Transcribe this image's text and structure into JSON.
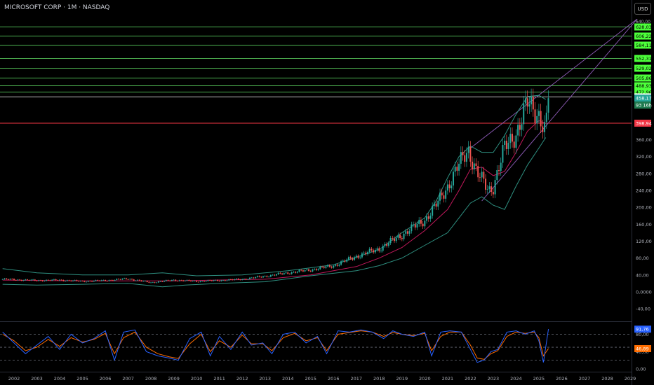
{
  "header": {
    "title": "MICROSOFT CORP · 1M · NASDAQ",
    "currency": "USD"
  },
  "colors": {
    "up": "#26a69a",
    "down": "#ef5350",
    "level_line": "#4caf50",
    "level_tag": "#4cff3a",
    "support": "#f23645",
    "bb": "#2e8f80",
    "ma": "#c2185b",
    "channel": "#8e5bb8",
    "k": "#2962ff",
    "d": "#ff6d00"
  },
  "chart_data": [
    {
      "type": "candlestick",
      "title": "MICROSOFT CORP · 1M · NASDAQ",
      "x_ticks": [
        "2002",
        "2003",
        "2004",
        "2005",
        "2006",
        "2007",
        "2008",
        "2009",
        "2010",
        "2011",
        "2012",
        "2013",
        "2014",
        "2015",
        "2016",
        "2017",
        "2018",
        "2019",
        "2020",
        "2021",
        "2022",
        "2023",
        "2024",
        "2025",
        "2026",
        "2027",
        "2028",
        "2029"
      ],
      "y_ticks": [
        "-40,00",
        "0,0000",
        "40,00",
        "80,00",
        "120,00",
        "160,00",
        "200,00",
        "240,00",
        "280,00",
        "320,00",
        "360,00"
      ],
      "ylim": [
        -60,
        660
      ],
      "horizontal_levels": [
        "628,03",
        "606,22",
        "584,11",
        "552,31",
        "529,02",
        "505,86",
        "488,93",
        "472,96"
      ],
      "level_values": [
        628.03,
        606.22,
        584.11,
        552.31,
        529.02,
        505.86,
        488.93,
        472.96
      ],
      "resistance_label": "461,04",
      "resistance": 461.04,
      "support_label": "398,94",
      "support": 398.94,
      "price_label": "458,17",
      "price": 458.17,
      "countdown_label": "93 16h",
      "top_tick_label": "640,00",
      "yearly_close": {
        "x": [
          2001.5,
          2002,
          2003,
          2004,
          2005,
          2006,
          2007,
          2008,
          2009,
          2010,
          2011,
          2012,
          2013,
          2014,
          2015,
          2016,
          2017,
          2018,
          2019,
          2020,
          2020.5,
          2021,
          2021.5,
          2021.9,
          2022.3,
          2022.8,
          2023,
          2023.5,
          2024,
          2024.5,
          2025,
          2025.3,
          2025.42
        ],
        "values": [
          30,
          29,
          27,
          28,
          25,
          27,
          31,
          22,
          28,
          25,
          27,
          30,
          37,
          45,
          52,
          62,
          84,
          102,
          135,
          170,
          205,
          250,
          300,
          338,
          280,
          240,
          250,
          340,
          375,
          445,
          420,
          380,
          458
        ]
      },
      "bollinger_upper": {
        "x": [
          2001.5,
          2003,
          2005,
          2007,
          2008.5,
          2010,
          2012,
          2014,
          2016,
          2018,
          2019,
          2020,
          2020.5,
          2021,
          2021.5,
          2022,
          2022.5,
          2023,
          2023.5,
          2024,
          2024.5,
          2025,
          2025.3
        ],
        "values": [
          55,
          45,
          40,
          40,
          45,
          38,
          40,
          50,
          64,
          100,
          140,
          175,
          215,
          270,
          320,
          345,
          330,
          330,
          370,
          420,
          462,
          465,
          455
        ]
      },
      "bollinger_lower": {
        "x": [
          2001.5,
          2003,
          2005,
          2007,
          2008.5,
          2009.5,
          2011,
          2013,
          2015,
          2017,
          2018,
          2019,
          2020,
          2021,
          2021.5,
          2022,
          2022.5,
          2023,
          2023.5,
          2024,
          2024.5,
          2025,
          2025.3
        ],
        "values": [
          18,
          16,
          18,
          20,
          12,
          16,
          20,
          24,
          38,
          50,
          62,
          80,
          110,
          140,
          175,
          210,
          225,
          205,
          195,
          250,
          300,
          340,
          365
        ]
      },
      "moving_average": {
        "x": [
          2001.5,
          2005,
          2009,
          2013,
          2015,
          2016,
          2017,
          2018,
          2019,
          2020,
          2021,
          2021.5,
          2022,
          2022.5,
          2023,
          2023.5,
          2024,
          2024.5,
          2025,
          2025.3
        ],
        "values": [
          28,
          26,
          26,
          30,
          40,
          50,
          60,
          80,
          105,
          145,
          195,
          240,
          290,
          295,
          275,
          285,
          330,
          380,
          405,
          398
        ]
      },
      "channel": {
        "upper": {
          "x1": 2022.0,
          "y1": 340,
          "x2": 2029.3,
          "y2": 645
        },
        "lower": {
          "x1": 2022.5,
          "y1": 215,
          "x2": 2029.3,
          "y2": 645
        }
      }
    },
    {
      "type": "line",
      "title": "Stochastic",
      "y_ticks": [
        "80,00",
        "40,00",
        "0,00"
      ],
      "ylim": [
        -10,
        110
      ],
      "bands": [
        80,
        50,
        20
      ],
      "k_label": "91,76",
      "k_value": 91.76,
      "d_label": "46,89",
      "d_value": 46.89,
      "k": {
        "x": [
          2001.5,
          2002,
          2002.5,
          2003,
          2003.5,
          2004,
          2004.5,
          2005,
          2005.5,
          2006,
          2006.4,
          2006.8,
          2007.3,
          2007.8,
          2008.3,
          2008.8,
          2009.2,
          2009.7,
          2010.2,
          2010.6,
          2011,
          2011.5,
          2012,
          2012.4,
          2012.9,
          2013.3,
          2013.8,
          2014.3,
          2014.8,
          2015.3,
          2015.7,
          2016.2,
          2016.7,
          2017.2,
          2017.7,
          2018.2,
          2018.6,
          2019,
          2019.5,
          2020,
          2020.3,
          2020.7,
          2021.1,
          2021.6,
          2022.0,
          2022.3,
          2022.6,
          2022.9,
          2023.2,
          2023.6,
          2024,
          2024.4,
          2024.8,
          2025,
          2025.2,
          2025.42
        ],
        "values": [
          85,
          60,
          35,
          55,
          75,
          45,
          80,
          60,
          70,
          88,
          20,
          85,
          90,
          40,
          30,
          25,
          20,
          70,
          85,
          30,
          75,
          45,
          85,
          55,
          60,
          35,
          80,
          85,
          60,
          75,
          35,
          88,
          85,
          90,
          85,
          70,
          88,
          80,
          75,
          85,
          30,
          85,
          88,
          85,
          45,
          15,
          20,
          40,
          45,
          85,
          88,
          80,
          88,
          65,
          15,
          92
        ]
      },
      "d": {
        "x": [
          2001.5,
          2002,
          2002.5,
          2003,
          2003.5,
          2004,
          2004.5,
          2005,
          2005.5,
          2006,
          2006.4,
          2006.8,
          2007.3,
          2007.8,
          2008.3,
          2008.8,
          2009.2,
          2009.7,
          2010.2,
          2010.6,
          2011,
          2011.5,
          2012,
          2012.4,
          2012.9,
          2013.3,
          2013.8,
          2014.3,
          2014.8,
          2015.3,
          2015.7,
          2016.2,
          2016.7,
          2017.2,
          2017.7,
          2018.2,
          2018.6,
          2019,
          2019.5,
          2020,
          2020.3,
          2020.7,
          2021.1,
          2021.6,
          2022.0,
          2022.3,
          2022.6,
          2022.9,
          2023.2,
          2023.6,
          2024,
          2024.4,
          2024.8,
          2025,
          2025.2,
          2025.42
        ],
        "values": [
          80,
          65,
          42,
          50,
          68,
          52,
          72,
          62,
          68,
          82,
          35,
          72,
          85,
          50,
          35,
          28,
          24,
          58,
          80,
          40,
          65,
          50,
          78,
          58,
          58,
          42,
          72,
          82,
          65,
          72,
          42,
          80,
          84,
          88,
          85,
          75,
          84,
          80,
          77,
          82,
          42,
          75,
          85,
          85,
          55,
          25,
          22,
          35,
          42,
          75,
          85,
          82,
          85,
          72,
          30,
          47
        ]
      }
    }
  ]
}
